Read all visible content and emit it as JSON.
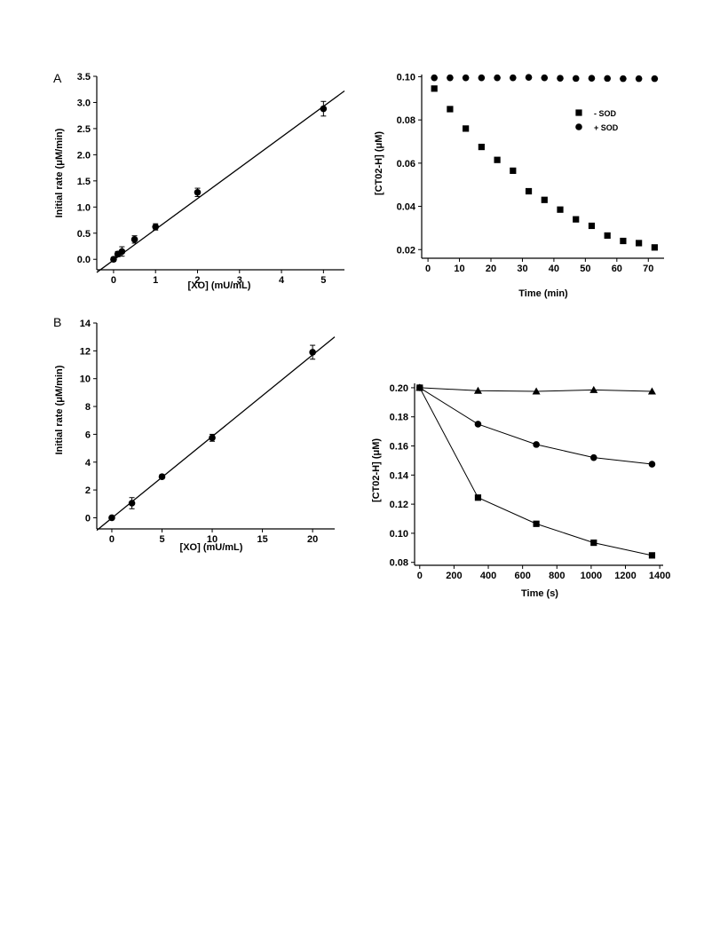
{
  "panel_labels": [
    "A",
    "B"
  ],
  "chart_data": [
    {
      "type": "scatter",
      "xlabel": "[XO] (mU/mL)",
      "ylabel": "Initial rate (μM/min)",
      "xlim": [
        -0.4,
        5.5
      ],
      "ylim": [
        -0.2,
        3.5
      ],
      "xticks": [
        "0",
        "1",
        "2",
        "3",
        "4",
        "5"
      ],
      "yticks": [
        "0.0",
        "0.5",
        "1.0",
        "1.5",
        "2.0",
        "2.5",
        "3.0",
        "3.5"
      ],
      "fit_line": {
        "x": [
          -0.4,
          5.5
        ],
        "y": [
          -0.25,
          3.22
        ]
      },
      "series": [
        {
          "marker": "circle",
          "x": [
            0,
            0.1,
            0.2,
            0.5,
            1,
            2,
            5
          ],
          "y": [
            0.0,
            0.1,
            0.15,
            0.38,
            0.62,
            1.28,
            2.88
          ],
          "err": [
            0.04,
            0.05,
            0.09,
            0.07,
            0.06,
            0.08,
            0.14
          ]
        }
      ]
    },
    {
      "type": "scatter",
      "xlabel": "Time (min)",
      "ylabel": "[CT02-H] (μM)",
      "xlim": [
        -2,
        75
      ],
      "ylim": [
        0.016,
        0.101
      ],
      "xticks": [
        "0",
        "10",
        "20",
        "30",
        "40",
        "50",
        "60",
        "70"
      ],
      "yticks": [
        "0.02",
        "0.04",
        "0.06",
        "0.08",
        "0.10"
      ],
      "legend_position": "top-right",
      "series": [
        {
          "name": "- SOD",
          "marker": "square",
          "x": [
            2,
            7,
            12,
            17,
            22,
            27,
            32,
            37,
            42,
            47,
            52,
            57,
            62,
            67,
            72
          ],
          "y": [
            0.0945,
            0.085,
            0.076,
            0.0675,
            0.0615,
            0.0565,
            0.047,
            0.043,
            0.0385,
            0.034,
            0.031,
            0.0265,
            0.024,
            0.023,
            0.021
          ]
        },
        {
          "name": "+ SOD",
          "marker": "circle",
          "x": [
            2,
            7,
            12,
            17,
            22,
            27,
            32,
            37,
            42,
            47,
            52,
            57,
            62,
            67,
            72
          ],
          "y": [
            0.0995,
            0.0995,
            0.0995,
            0.0995,
            0.0995,
            0.0995,
            0.0997,
            0.0995,
            0.0993,
            0.0992,
            0.0993,
            0.0992,
            0.0991,
            0.0991,
            0.0991
          ]
        }
      ]
    },
    {
      "type": "scatter",
      "xlabel": "[XO] (mU/mL)",
      "ylabel": "Initial rate (μM/min)",
      "xlim": [
        -1.5,
        22.2
      ],
      "ylim": [
        -0.8,
        14
      ],
      "xticks": [
        "0",
        "5",
        "10",
        "15",
        "20"
      ],
      "yticks": [
        "0",
        "2",
        "4",
        "6",
        "8",
        "10",
        "12",
        "14"
      ],
      "fit_line": {
        "x": [
          -1.5,
          22.2
        ],
        "y": [
          -0.9,
          13.0
        ]
      },
      "series": [
        {
          "marker": "circle",
          "x": [
            0,
            2,
            5,
            10,
            20
          ],
          "y": [
            0.0,
            1.05,
            2.95,
            5.75,
            11.9
          ],
          "err": [
            0.05,
            0.4,
            0.15,
            0.25,
            0.5
          ]
        }
      ]
    },
    {
      "type": "line",
      "xlabel": "Time (s)",
      "ylabel": "[CT02-H] (μM)",
      "xlim": [
        -30,
        1420
      ],
      "ylim": [
        0.078,
        0.203
      ],
      "xticks": [
        "0",
        "200",
        "400",
        "600",
        "800",
        "1000",
        "1200",
        "1400"
      ],
      "yticks": [
        "0.08",
        "0.10",
        "0.12",
        "0.14",
        "0.16",
        "0.18",
        "0.20"
      ],
      "series": [
        {
          "marker": "triangle",
          "x": [
            0,
            340,
            680,
            1015,
            1355
          ],
          "y": [
            0.2,
            0.198,
            0.1975,
            0.1985,
            0.1975
          ]
        },
        {
          "marker": "circle",
          "x": [
            0,
            340,
            680,
            1015,
            1355
          ],
          "y": [
            0.2,
            0.175,
            0.161,
            0.152,
            0.1475
          ]
        },
        {
          "marker": "square",
          "x": [
            0,
            340,
            680,
            1015,
            1355
          ],
          "y": [
            0.2,
            0.1245,
            0.1065,
            0.0935,
            0.0848
          ]
        }
      ]
    }
  ]
}
